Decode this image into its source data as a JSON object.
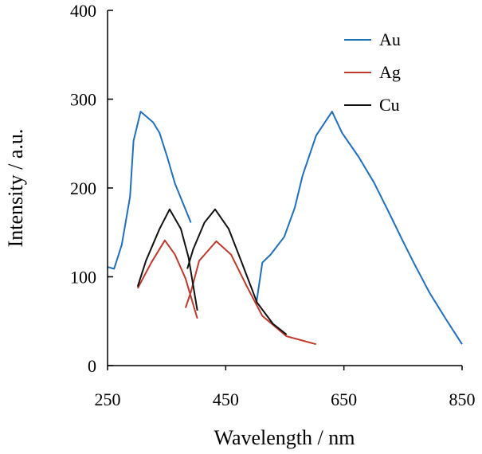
{
  "chart_data": {
    "type": "line",
    "title": "",
    "xlabel": "Wavelength / nm",
    "ylabel": "Intensity / a.u.",
    "xlim": [
      250,
      850
    ],
    "ylim": [
      0,
      400
    ],
    "xticks": [
      "250",
      "450",
      "650",
      "850"
    ],
    "yticks": [
      "0",
      "100",
      "200",
      "300",
      "400"
    ],
    "grid": false,
    "legend_position": "top-right",
    "series": [
      {
        "name": "Au",
        "color": "#1f6fc1",
        "segments": [
          [
            [
              250,
              111
            ],
            [
              261,
              109
            ],
            [
              274,
              136
            ],
            [
              288,
              190
            ],
            [
              294,
              253
            ],
            [
              306,
              286
            ],
            [
              327,
              274
            ],
            [
              338,
              262
            ],
            [
              351,
              235
            ],
            [
              364,
              205
            ],
            [
              391,
              161
            ]
          ],
          [
            [
              502,
              71
            ],
            [
              512,
              116
            ],
            [
              526,
              125
            ],
            [
              549,
              145
            ],
            [
              567,
              178
            ],
            [
              580,
              214
            ],
            [
              603,
              259
            ],
            [
              630,
              286
            ],
            [
              647,
              262
            ],
            [
              675,
              235
            ],
            [
              701,
              206
            ],
            [
              728,
              170
            ],
            [
              750,
              140
            ],
            [
              768,
              116
            ],
            [
              795,
              82
            ],
            [
              822,
              53
            ],
            [
              850,
              24
            ]
          ]
        ]
      },
      {
        "name": "Ag",
        "color": "#c0392b",
        "segments": [
          [
            [
              301,
              87
            ],
            [
              324,
              116
            ],
            [
              347,
              141
            ],
            [
              364,
              125
            ],
            [
              382,
              98
            ],
            [
              402,
              53
            ]
          ],
          [
            [
              382,
              65
            ],
            [
              391,
              83
            ],
            [
              405,
              118
            ],
            [
              434,
              140
            ],
            [
              459,
              125
            ],
            [
              486,
              89
            ],
            [
              512,
              56
            ],
            [
              553,
              33
            ],
            [
              603,
              24
            ]
          ]
        ]
      },
      {
        "name": "Cu",
        "color": "#111111",
        "segments": [
          [
            [
              301,
              89
            ],
            [
              315,
              118
            ],
            [
              338,
              154
            ],
            [
              355,
              176
            ],
            [
              374,
              154
            ],
            [
              387,
              122
            ],
            [
              402,
              62
            ]
          ],
          [
            [
              385,
              109
            ],
            [
              395,
              131
            ],
            [
              414,
              161
            ],
            [
              432,
              176
            ],
            [
              455,
              154
            ],
            [
              476,
              118
            ],
            [
              503,
              71
            ],
            [
              530,
              47
            ],
            [
              553,
              35
            ]
          ]
        ]
      }
    ]
  }
}
